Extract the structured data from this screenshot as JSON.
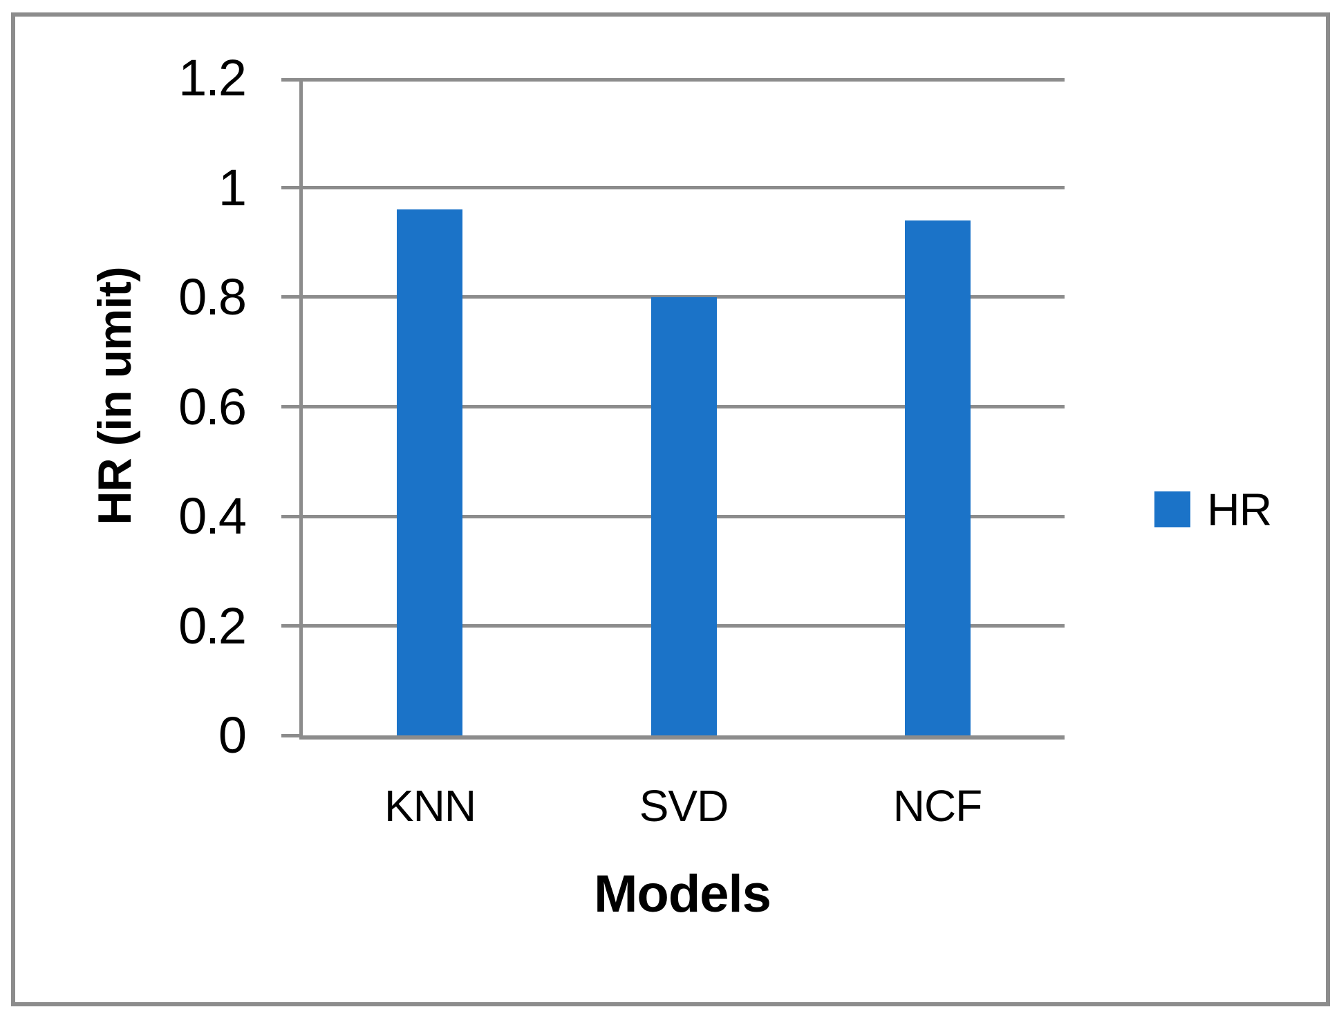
{
  "frame": {
    "border_color": "#8C8C8C",
    "background_color": "#FFFFFF"
  },
  "chart_data": {
    "type": "bar",
    "categories": [
      "KNN",
      "SVD",
      "NCF"
    ],
    "series": [
      {
        "name": "HR",
        "values": [
          0.96,
          0.8,
          0.94
        ]
      }
    ],
    "title": "",
    "xlabel": "Models",
    "ylabel": "HR (in umit)",
    "ylim": [
      0,
      1.2
    ],
    "ytick_step": 0.2,
    "yticks": [
      0,
      0.2,
      0.4,
      0.6,
      0.8,
      1,
      1.2
    ],
    "ytick_labels": [
      "0",
      "0.2",
      "0.4",
      "0.6",
      "0.8",
      "1",
      "1.2"
    ],
    "grid": "horizontal",
    "legend": {
      "position": "right",
      "entries": [
        "HR"
      ]
    },
    "colors": {
      "bar": "#1B73C8",
      "grid": "#8C8C8C",
      "axis": "#8C8C8C",
      "text": "#000000"
    }
  }
}
